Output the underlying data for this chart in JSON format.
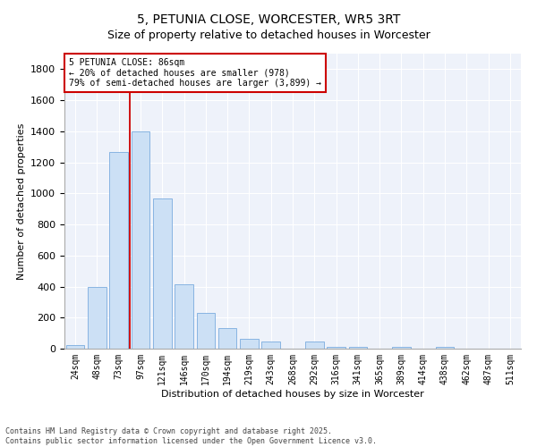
{
  "title": "5, PETUNIA CLOSE, WORCESTER, WR5 3RT",
  "subtitle": "Size of property relative to detached houses in Worcester",
  "xlabel": "Distribution of detached houses by size in Worcester",
  "ylabel": "Number of detached properties",
  "categories": [
    "24sqm",
    "48sqm",
    "73sqm",
    "97sqm",
    "121sqm",
    "146sqm",
    "170sqm",
    "194sqm",
    "219sqm",
    "243sqm",
    "268sqm",
    "292sqm",
    "316sqm",
    "341sqm",
    "365sqm",
    "389sqm",
    "414sqm",
    "438sqm",
    "462sqm",
    "487sqm",
    "511sqm"
  ],
  "values": [
    25,
    395,
    1265,
    1400,
    965,
    415,
    230,
    130,
    65,
    48,
    0,
    45,
    13,
    12,
    0,
    10,
    0,
    10,
    0,
    0,
    0
  ],
  "bar_color": "#cce0f5",
  "bar_edge_color": "#7aacde",
  "vline_x": 2.5,
  "vline_color": "#cc0000",
  "annotation_text": "5 PETUNIA CLOSE: 86sqm\n← 20% of detached houses are smaller (978)\n79% of semi-detached houses are larger (3,899) →",
  "annotation_box_color": "#cc0000",
  "ylim": [
    0,
    1900
  ],
  "yticks": [
    0,
    200,
    400,
    600,
    800,
    1000,
    1200,
    1400,
    1600,
    1800
  ],
  "bg_color": "#eef2fa",
  "footer_text": "Contains HM Land Registry data © Crown copyright and database right 2025.\nContains public sector information licensed under the Open Government Licence v3.0.",
  "title_fontsize": 10,
  "axis_fontsize": 8,
  "tick_fontsize": 7
}
